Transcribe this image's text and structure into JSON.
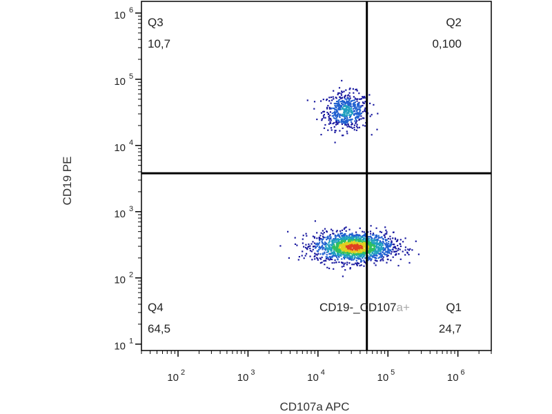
{
  "chart_data": {
    "type": "scatter",
    "xlabel": "CD107a APC",
    "ylabel": "CD19 PE",
    "x_scale": "log",
    "y_scale": "log",
    "xlim": [
      30,
      3000000
    ],
    "ylim": [
      8,
      1500000
    ],
    "x_ticks": [
      {
        "base": "10",
        "exp": "2",
        "value": 100
      },
      {
        "base": "10",
        "exp": "3",
        "value": 1000
      },
      {
        "base": "10",
        "exp": "4",
        "value": 10000
      },
      {
        "base": "10",
        "exp": "5",
        "value": 100000
      },
      {
        "base": "10",
        "exp": "6",
        "value": 1000000
      }
    ],
    "y_ticks": [
      {
        "base": "10",
        "exp": "1",
        "value": 10
      },
      {
        "base": "10",
        "exp": "2",
        "value": 100
      },
      {
        "base": "10",
        "exp": "3",
        "value": 1000
      },
      {
        "base": "10",
        "exp": "4",
        "value": 10000
      },
      {
        "base": "10",
        "exp": "5",
        "value": 100000
      },
      {
        "base": "10",
        "exp": "6",
        "value": 1000000
      }
    ],
    "gate": {
      "x": 50000,
      "y": 3800
    },
    "quadrants": [
      {
        "name": "Q3",
        "value": "10,7"
      },
      {
        "name": "Q2",
        "value": "0,100"
      },
      {
        "name": "Q4",
        "value": "64,5"
      },
      {
        "name": "Q1",
        "value": "24,7"
      }
    ],
    "annotation": {
      "part1": "CD19-_CD107",
      "part2": "a+"
    },
    "populations": [
      {
        "center_x": 25000,
        "center_y": 34000,
        "spread_x": 0.16,
        "spread_y": 0.14,
        "count": 520,
        "density": "medium"
      },
      {
        "center_x": 32000,
        "center_y": 300,
        "spread_x": 0.28,
        "spread_y": 0.11,
        "count": 1700,
        "density": "high"
      }
    ],
    "density_colors": [
      "#1a1aa0",
      "#2060d0",
      "#20a0c0",
      "#30c060",
      "#e0d020",
      "#e04020"
    ]
  }
}
